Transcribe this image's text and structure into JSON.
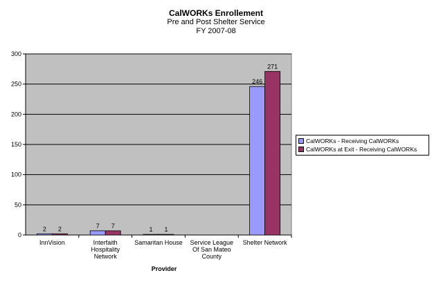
{
  "chart_data": {
    "type": "bar",
    "title": "CalWORKs Enrollement",
    "subtitle_lines": [
      "Pre and Post Shelter Service",
      "FY 2007-08"
    ],
    "xlabel": "Provider",
    "ylabel": "",
    "ylim": [
      0,
      300
    ],
    "yticks": [
      0,
      50,
      100,
      150,
      200,
      250,
      300
    ],
    "grid": true,
    "legend_position": "right",
    "categories": [
      [
        "InnVision"
      ],
      [
        "Interfaith",
        "Hospitality",
        "Network"
      ],
      [
        "Samaritan House"
      ],
      [
        "Service League",
        "Of San Mateo",
        "County"
      ],
      [
        "Shelter Network"
      ]
    ],
    "series": [
      {
        "name": "CalWORKs - Receiving CalWORKs",
        "color": "#9999ff",
        "values": [
          2,
          7,
          1,
          null,
          246
        ],
        "labels": [
          "2",
          "7",
          "1",
          "",
          "246"
        ]
      },
      {
        "name": "CalWORKs at Exit - Receiving CalWORKs",
        "color": "#993366",
        "values": [
          2,
          7,
          1,
          null,
          271
        ],
        "labels": [
          "2",
          "7",
          "1",
          "",
          "271"
        ]
      }
    ],
    "plot_background": "#c0c0c0"
  }
}
